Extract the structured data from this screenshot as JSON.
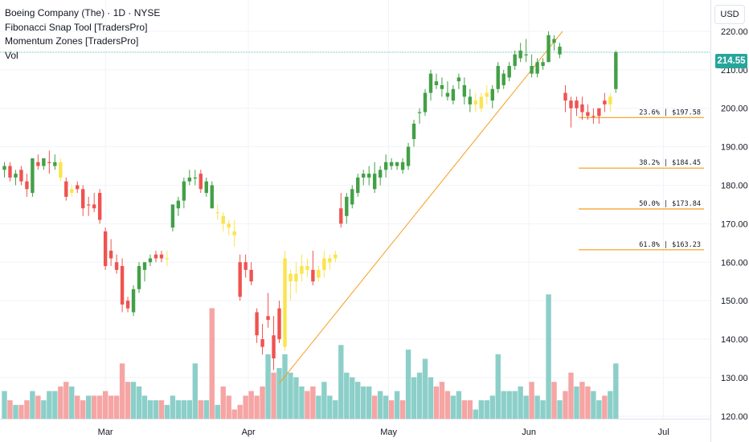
{
  "legend": {
    "symbol_line": "Boeing Company (The) · 1D · NYSE",
    "indicator_1": "Fibonacci Snap Tool [TradersPro]",
    "indicator_2": "Momentum Zones [TradersPro]",
    "indicator_3": "Vol"
  },
  "currency_button": "USD",
  "last_price": "214.55",
  "colors": {
    "up": "#43a047",
    "down": "#ef5350",
    "neutral": "#fbe44d",
    "vol_up": "#8ccfc9",
    "vol_down": "#f5a5a4",
    "fib": "#f59c1a",
    "last_price": "#26a69a"
  },
  "chart_data": {
    "type": "candlestick",
    "x_ticks": [
      "Mar",
      "Apr",
      "May",
      "Jun",
      "Jul"
    ],
    "x_tick_index": [
      18,
      43.5,
      68.5,
      93.5,
      117.5
    ],
    "y_ticks": [
      120,
      130,
      140,
      150,
      160,
      170,
      180,
      190,
      200,
      210,
      220
    ],
    "ylim": [
      118.5,
      225
    ],
    "fib_levels": [
      {
        "label": "23.6% | $197.58",
        "value": 197.58
      },
      {
        "label": "38.2% | $184.45",
        "value": 184.45
      },
      {
        "label": "50.0% | $173.84",
        "value": 173.84
      },
      {
        "label": "61.8% | $163.23",
        "value": 163.23
      }
    ],
    "fib_swing": {
      "from_index": 49,
      "from_value": 128.5,
      "to_index": 99.5,
      "to_value": 220.0
    },
    "last_price_value": 214.55,
    "candles": [
      {
        "o": 184,
        "h": 186,
        "l": 182,
        "c": 185,
        "z": "u",
        "v": 126
      },
      {
        "o": 185,
        "h": 186,
        "l": 181,
        "c": 182,
        "z": "d",
        "v": 124
      },
      {
        "o": 182,
        "h": 184,
        "l": 180,
        "c": 183,
        "z": "u",
        "v": 123
      },
      {
        "o": 184,
        "h": 185,
        "l": 180,
        "c": 181,
        "z": "d",
        "v": 123
      },
      {
        "o": 181,
        "h": 183,
        "l": 177,
        "c": 179,
        "z": "d",
        "v": 124
      },
      {
        "o": 178,
        "h": 187,
        "l": 177,
        "c": 187,
        "z": "u",
        "v": 126
      },
      {
        "o": 186,
        "h": 188,
        "l": 184,
        "c": 185,
        "z": "d",
        "v": 125
      },
      {
        "o": 185,
        "h": 187,
        "l": 184,
        "c": 187,
        "z": "u",
        "v": 124
      },
      {
        "o": 186,
        "h": 189,
        "l": 183,
        "c": 186,
        "z": "d",
        "v": 126
      },
      {
        "o": 185,
        "h": 188,
        "l": 184,
        "c": 186,
        "z": "u",
        "v": 126
      },
      {
        "o": 186,
        "h": 187,
        "l": 181,
        "c": 182,
        "z": "n",
        "v": 127
      },
      {
        "o": 181,
        "h": 182,
        "l": 176,
        "c": 177,
        "z": "d",
        "v": 128
      },
      {
        "o": 178,
        "h": 180,
        "l": 177,
        "c": 179,
        "z": "n",
        "v": 127
      },
      {
        "o": 180,
        "h": 181,
        "l": 178,
        "c": 179,
        "z": "d",
        "v": 125
      },
      {
        "o": 179,
        "h": 180,
        "l": 172,
        "c": 174,
        "z": "d",
        "v": 124
      },
      {
        "o": 175,
        "h": 177,
        "l": 172,
        "c": 175,
        "z": "d",
        "v": 125
      },
      {
        "o": 175,
        "h": 178,
        "l": 173,
        "c": 174,
        "z": "d",
        "v": 125
      },
      {
        "o": 178,
        "h": 179,
        "l": 170,
        "c": 171,
        "z": "d",
        "v": 125
      },
      {
        "o": 168,
        "h": 169,
        "l": 158,
        "c": 159,
        "z": "d",
        "v": 126
      },
      {
        "o": 163,
        "h": 166,
        "l": 159,
        "c": 161,
        "z": "d",
        "v": 125
      },
      {
        "o": 160,
        "h": 162,
        "l": 157,
        "c": 158,
        "z": "d",
        "v": 125
      },
      {
        "o": 159,
        "h": 161,
        "l": 147,
        "c": 149,
        "z": "d",
        "v": 132
      },
      {
        "o": 150,
        "h": 151,
        "l": 147,
        "c": 148,
        "z": "d",
        "v": 128
      },
      {
        "o": 147,
        "h": 154,
        "l": 146,
        "c": 153,
        "z": "u",
        "v": 128
      },
      {
        "o": 153,
        "h": 160,
        "l": 152,
        "c": 159,
        "z": "u",
        "v": 127
      },
      {
        "o": 158,
        "h": 160,
        "l": 155,
        "c": 160,
        "z": "u",
        "v": 125
      },
      {
        "o": 160,
        "h": 162,
        "l": 159,
        "c": 161,
        "z": "u",
        "v": 124
      },
      {
        "o": 161,
        "h": 163,
        "l": 160,
        "c": 162,
        "z": "d",
        "v": 124
      },
      {
        "o": 162,
        "h": 163,
        "l": 160,
        "c": 161,
        "z": "d",
        "v": 124
      },
      {
        "o": 161,
        "h": 163,
        "l": 159,
        "c": 161,
        "z": "n",
        "v": 123
      },
      {
        "o": 169,
        "h": 175,
        "l": 168,
        "c": 175,
        "z": "u",
        "v": 125
      },
      {
        "o": 174,
        "h": 177,
        "l": 172,
        "c": 176,
        "z": "u",
        "v": 124
      },
      {
        "o": 176,
        "h": 182,
        "l": 174,
        "c": 181,
        "z": "u",
        "v": 124
      },
      {
        "o": 181,
        "h": 184,
        "l": 180,
        "c": 182,
        "z": "u",
        "v": 124
      },
      {
        "o": 182,
        "h": 184,
        "l": 180,
        "c": 182,
        "z": "u",
        "v": 132
      },
      {
        "o": 183,
        "h": 184,
        "l": 178,
        "c": 179,
        "z": "d",
        "v": 124
      },
      {
        "o": 178,
        "h": 182,
        "l": 177,
        "c": 181,
        "z": "u",
        "v": 124
      },
      {
        "o": 180,
        "h": 181,
        "l": 174,
        "c": 174,
        "z": "u",
        "v": 144
      },
      {
        "o": 173,
        "h": 175,
        "l": 171,
        "c": 173,
        "z": "n",
        "v": 123
      },
      {
        "o": 172,
        "h": 173,
        "l": 168,
        "c": 170,
        "z": "n",
        "v": 127
      },
      {
        "o": 170,
        "h": 171,
        "l": 167,
        "c": 169,
        "z": "n",
        "v": 125
      },
      {
        "o": 168,
        "h": 171,
        "l": 164,
        "c": 167,
        "z": "n",
        "v": 122
      },
      {
        "o": 160,
        "h": 162,
        "l": 150,
        "c": 151,
        "z": "d",
        "v": 123
      },
      {
        "o": 160,
        "h": 162,
        "l": 156,
        "c": 158,
        "z": "d",
        "v": 125
      },
      {
        "o": 158,
        "h": 160,
        "l": 154,
        "c": 155,
        "z": "d",
        "v": 126
      },
      {
        "o": 147,
        "h": 148,
        "l": 139,
        "c": 141,
        "z": "d",
        "v": 125
      },
      {
        "o": 140,
        "h": 144,
        "l": 136,
        "c": 138,
        "z": "d",
        "v": 127
      },
      {
        "o": 145,
        "h": 152,
        "l": 143,
        "c": 146,
        "z": "d",
        "v": 134
      },
      {
        "o": 141,
        "h": 146,
        "l": 132,
        "c": 135,
        "z": "d",
        "v": 130
      },
      {
        "o": 140,
        "h": 150,
        "l": 139,
        "c": 148,
        "z": "d",
        "v": 131
      },
      {
        "o": 138,
        "h": 163,
        "l": 137,
        "c": 161,
        "z": "n",
        "v": 134
      },
      {
        "o": 155,
        "h": 158,
        "l": 150,
        "c": 157,
        "z": "n",
        "v": 130
      },
      {
        "o": 155,
        "h": 160,
        "l": 152,
        "c": 157,
        "z": "n",
        "v": 129
      },
      {
        "o": 157,
        "h": 162,
        "l": 155,
        "c": 159,
        "z": "n",
        "v": 127
      },
      {
        "o": 159,
        "h": 161,
        "l": 156,
        "c": 158,
        "z": "n",
        "v": 126
      },
      {
        "o": 158,
        "h": 163,
        "l": 154,
        "c": 155,
        "z": "d",
        "v": 127
      },
      {
        "o": 156,
        "h": 159,
        "l": 155,
        "c": 158,
        "z": "n",
        "v": 125
      },
      {
        "o": 158,
        "h": 163,
        "l": 156,
        "c": 161,
        "z": "n",
        "v": 128
      },
      {
        "o": 160,
        "h": 162,
        "l": 158,
        "c": 161,
        "z": "n",
        "v": 125
      },
      {
        "o": 161,
        "h": 163,
        "l": 160,
        "c": 162,
        "z": "n",
        "v": 124
      },
      {
        "o": 170,
        "h": 178,
        "l": 169,
        "c": 174,
        "z": "d",
        "v": 136
      },
      {
        "o": 172,
        "h": 178,
        "l": 170,
        "c": 177,
        "z": "u",
        "v": 130
      },
      {
        "o": 175,
        "h": 180,
        "l": 174,
        "c": 179,
        "z": "u",
        "v": 129
      },
      {
        "o": 178,
        "h": 183,
        "l": 177,
        "c": 182,
        "z": "u",
        "v": 128
      },
      {
        "o": 182,
        "h": 184,
        "l": 180,
        "c": 183,
        "z": "u",
        "v": 127
      },
      {
        "o": 182,
        "h": 185,
        "l": 180,
        "c": 183,
        "z": "u",
        "v": 127
      },
      {
        "o": 183,
        "h": 186,
        "l": 178,
        "c": 179,
        "z": "u",
        "v": 125
      },
      {
        "o": 182,
        "h": 185,
        "l": 180,
        "c": 184,
        "z": "u",
        "v": 126
      },
      {
        "o": 184,
        "h": 188,
        "l": 182,
        "c": 186,
        "z": "u",
        "v": 125
      },
      {
        "o": 186,
        "h": 187,
        "l": 184,
        "c": 185,
        "z": "u",
        "v": 124
      },
      {
        "o": 185,
        "h": 186,
        "l": 184,
        "c": 186,
        "z": "u",
        "v": 126
      },
      {
        "o": 186,
        "h": 187,
        "l": 183,
        "c": 184,
        "z": "u",
        "v": 124
      },
      {
        "o": 185,
        "h": 191,
        "l": 184,
        "c": 190,
        "z": "u",
        "v": 135
      },
      {
        "o": 192,
        "h": 197,
        "l": 190,
        "c": 196,
        "z": "u",
        "v": 129
      },
      {
        "o": 199,
        "h": 200,
        "l": 196,
        "c": 199,
        "z": "u",
        "v": 130
      },
      {
        "o": 199,
        "h": 205,
        "l": 198,
        "c": 204,
        "z": "u",
        "v": 133
      },
      {
        "o": 204,
        "h": 210,
        "l": 202,
        "c": 209,
        "z": "u",
        "v": 129
      },
      {
        "o": 207,
        "h": 209,
        "l": 205,
        "c": 206,
        "z": "u",
        "v": 127
      },
      {
        "o": 206,
        "h": 208,
        "l": 203,
        "c": 205,
        "z": "u",
        "v": 128
      },
      {
        "o": 204,
        "h": 207,
        "l": 202,
        "c": 203,
        "z": "u",
        "v": 126
      },
      {
        "o": 202,
        "h": 206,
        "l": 201,
        "c": 205,
        "z": "u",
        "v": 125
      },
      {
        "o": 207,
        "h": 209,
        "l": 205,
        "c": 208,
        "z": "u",
        "v": 126
      },
      {
        "o": 206,
        "h": 208,
        "l": 201,
        "c": 203,
        "z": "u",
        "v": 124
      },
      {
        "o": 203,
        "h": 205,
        "l": 199,
        "c": 201,
        "z": "u",
        "v": 124
      },
      {
        "o": 201,
        "h": 204,
        "l": 199,
        "c": 202,
        "z": "n",
        "v": 122
      },
      {
        "o": 200,
        "h": 204,
        "l": 199,
        "c": 203,
        "z": "n",
        "v": 124
      },
      {
        "o": 203,
        "h": 206,
        "l": 201,
        "c": 204,
        "z": "n",
        "v": 124
      },
      {
        "o": 202,
        "h": 206,
        "l": 200,
        "c": 205,
        "z": "u",
        "v": 125
      },
      {
        "o": 205,
        "h": 212,
        "l": 204,
        "c": 211,
        "z": "u",
        "v": 134
      },
      {
        "o": 206,
        "h": 210,
        "l": 205,
        "c": 209,
        "z": "u",
        "v": 126
      },
      {
        "o": 208,
        "h": 212,
        "l": 207,
        "c": 211,
        "z": "u",
        "v": 126
      },
      {
        "o": 211,
        "h": 215,
        "l": 210,
        "c": 214,
        "z": "u",
        "v": 126
      },
      {
        "o": 213,
        "h": 217,
        "l": 212,
        "c": 215,
        "z": "u",
        "v": 127
      },
      {
        "o": 214,
        "h": 218,
        "l": 212,
        "c": 214,
        "z": "u",
        "v": 125
      },
      {
        "o": 211,
        "h": 214,
        "l": 208,
        "c": 209,
        "z": "u",
        "v": 128
      },
      {
        "o": 209,
        "h": 213,
        "l": 208,
        "c": 212,
        "z": "u",
        "v": 125
      },
      {
        "o": 211,
        "h": 213,
        "l": 210,
        "c": 212,
        "z": "u",
        "v": 124
      },
      {
        "o": 212,
        "h": 220,
        "l": 212,
        "c": 219,
        "z": "u",
        "v": 147
      },
      {
        "o": 218,
        "h": 219,
        "l": 215,
        "c": 217,
        "z": "u",
        "v": 128
      },
      {
        "o": 214,
        "h": 217,
        "l": 213,
        "c": 216,
        "z": "u",
        "v": 124
      },
      {
        "o": 204,
        "h": 206,
        "l": 199,
        "c": 202,
        "z": "d",
        "v": 126
      },
      {
        "o": 202,
        "h": 203,
        "l": 195,
        "c": 200,
        "z": "d",
        "v": 130
      },
      {
        "o": 200,
        "h": 203,
        "l": 198,
        "c": 202,
        "z": "d",
        "v": 127
      },
      {
        "o": 201,
        "h": 203,
        "l": 197,
        "c": 199,
        "z": "d",
        "v": 128
      },
      {
        "o": 199,
        "h": 201,
        "l": 197,
        "c": 198,
        "z": "d",
        "v": 127
      },
      {
        "o": 198,
        "h": 200,
        "l": 196,
        "c": 198,
        "z": "d",
        "v": 126
      },
      {
        "o": 198,
        "h": 200,
        "l": 196,
        "c": 200,
        "z": "d",
        "v": 124
      },
      {
        "o": 202,
        "h": 204,
        "l": 199,
        "c": 201,
        "z": "d",
        "v": 125
      },
      {
        "o": 201,
        "h": 204,
        "l": 199,
        "c": 203,
        "z": "n",
        "v": 126
      },
      {
        "o": 205,
        "h": 215,
        "l": 204,
        "c": 214.55,
        "z": "u",
        "v": 132
      }
    ]
  }
}
